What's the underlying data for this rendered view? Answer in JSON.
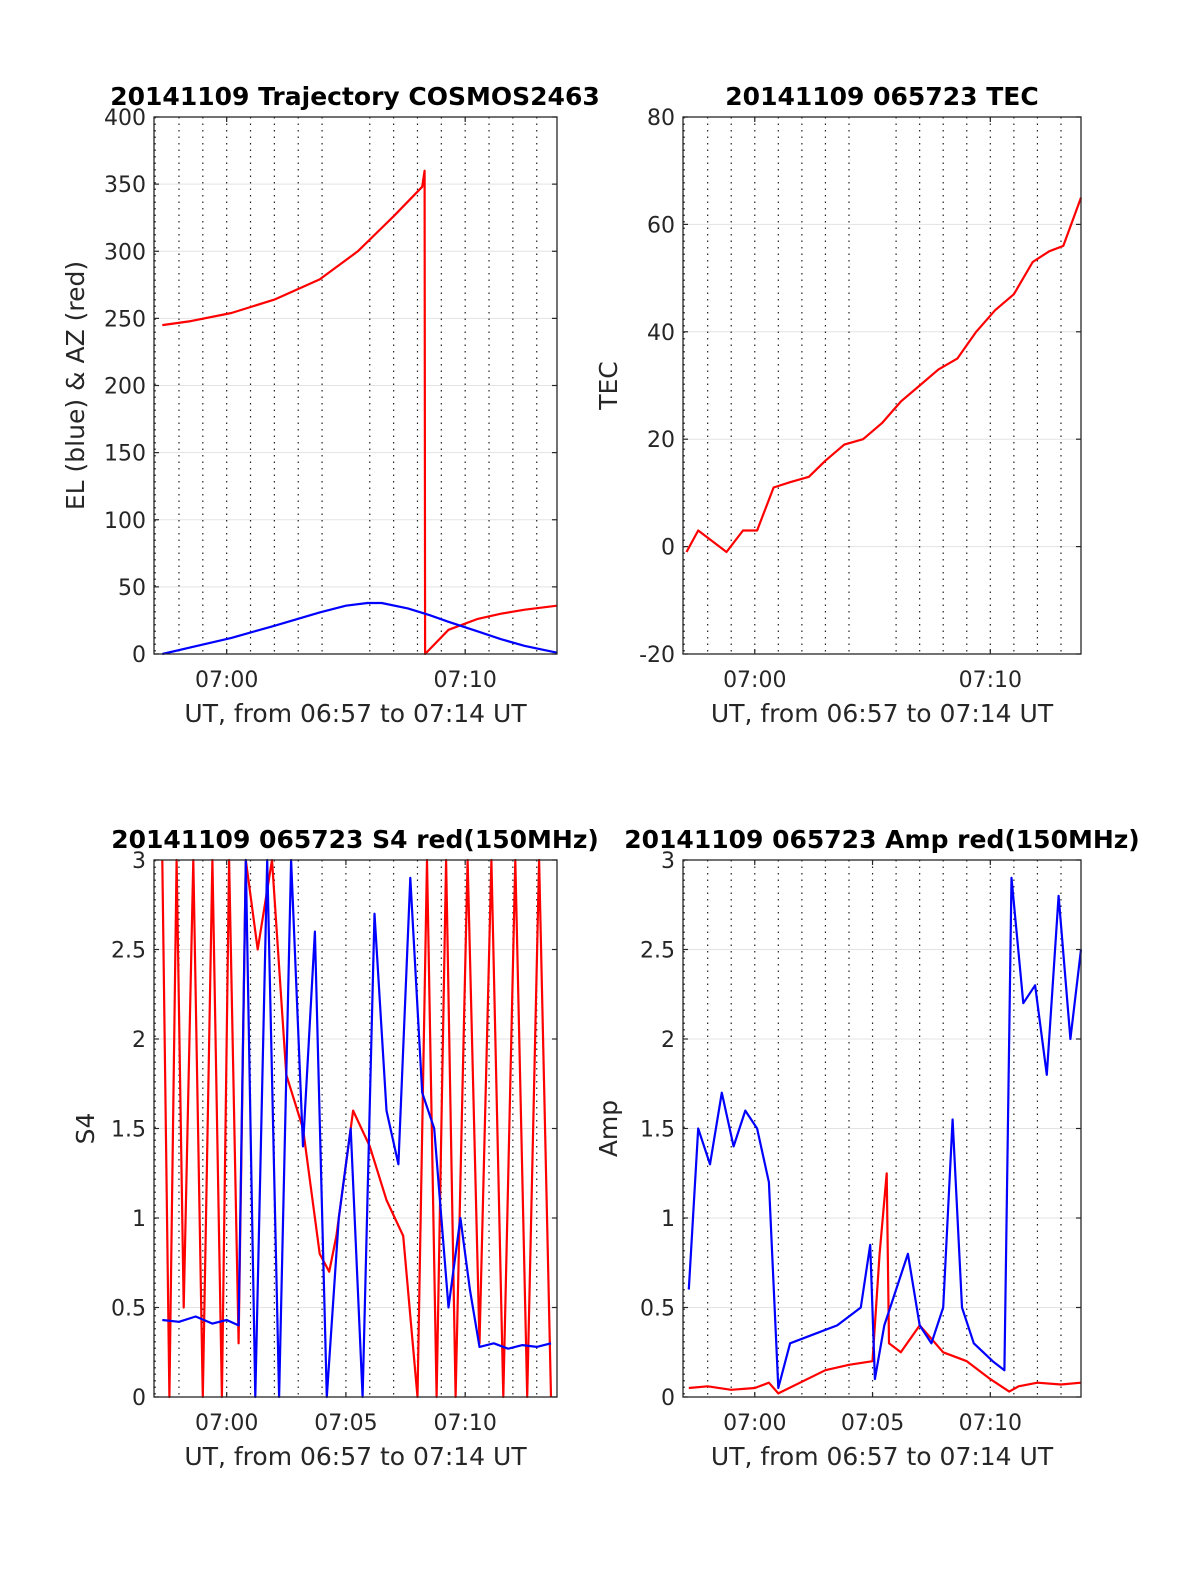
{
  "chart_data": [
    {
      "type": "line",
      "title": "20141109 Trajectory COSMOS2463",
      "xlabel": "UT, from 06:57 to 07:14 UT",
      "ylabel": "EL (blue) & AZ (red)",
      "xlim": [
        6.953,
        23.85
      ],
      "ylim": [
        0,
        400
      ],
      "x_ticks": [
        {
          "v": 10,
          "label": "07:00"
        },
        {
          "v": 20,
          "label": "07:10"
        }
      ],
      "y_ticks": [
        0,
        50,
        100,
        150,
        200,
        250,
        300,
        350,
        400
      ],
      "grid": true,
      "colors": {
        "az": "#ff0000",
        "el": "#0000ff"
      },
      "series": [
        {
          "name": "AZ (red)",
          "color": "#ff0000",
          "x": [
            7.3,
            8.5,
            10.2,
            12.0,
            13.9,
            15.5,
            17.0,
            18.2,
            18.3,
            18.32,
            19.3,
            20.5,
            21.5,
            22.5,
            23.85
          ],
          "y": [
            245,
            248,
            254,
            264,
            279,
            300,
            326,
            348,
            360,
            0,
            18,
            26,
            30,
            33,
            36
          ]
        },
        {
          "name": "EL (blue)",
          "color": "#0000ff",
          "x": [
            7.3,
            8.5,
            10.2,
            12.0,
            13.9,
            15.0,
            15.9,
            16.5,
            17.6,
            18.5,
            19.3,
            20.5,
            21.5,
            22.5,
            23.85
          ],
          "y": [
            0,
            5,
            12,
            21,
            31,
            36,
            38,
            38,
            34,
            29,
            24,
            17,
            11,
            6,
            1
          ]
        }
      ]
    },
    {
      "type": "line",
      "title": "20141109 065723 TEC",
      "xlabel": "UT, from 06:57 to 07:14 UT",
      "ylabel": "TEC",
      "xlim": [
        6.953,
        23.85
      ],
      "ylim": [
        -20,
        80
      ],
      "x_ticks": [
        {
          "v": 10,
          "label": "07:00"
        },
        {
          "v": 20,
          "label": "07:10"
        }
      ],
      "y_ticks": [
        -20,
        0,
        20,
        40,
        60,
        80
      ],
      "grid": true,
      "series": [
        {
          "color": "#ff0000",
          "x": [
            7.1,
            7.6,
            8.2,
            8.8,
            9.5,
            10.1,
            10.8,
            11.5,
            12.3,
            13.0,
            13.8,
            14.6,
            15.4,
            16.2,
            17.0,
            17.8,
            18.6,
            19.4,
            20.2,
            21.0,
            21.8,
            22.5,
            23.1,
            23.85
          ],
          "y": [
            -1,
            3,
            1,
            -1,
            3,
            3,
            11,
            12,
            13,
            16,
            19,
            20,
            23,
            27,
            30,
            33,
            35,
            40,
            44,
            47,
            53,
            55,
            56,
            65
          ]
        }
      ]
    },
    {
      "type": "line",
      "title": "20141109 065723 S4 red(150MHz)",
      "xlabel": "UT, from 06:57 to 07:14 UT",
      "ylabel": "S4",
      "xlim": [
        6.953,
        23.85
      ],
      "ylim": [
        0,
        3
      ],
      "x_ticks": [
        {
          "v": 10,
          "label": "07:00"
        },
        {
          "v": 15,
          "label": "07:05"
        },
        {
          "v": 20,
          "label": "07:10"
        }
      ],
      "y_ticks": [
        0,
        0.5,
        1,
        1.5,
        2,
        2.5,
        3
      ],
      "grid": true,
      "series": [
        {
          "name": "red",
          "color": "#ff0000",
          "x": [
            7.3,
            7.6,
            7.9,
            8.2,
            8.6,
            9.0,
            9.4,
            9.8,
            10.1,
            10.5,
            10.8,
            11.3,
            11.9,
            12.5,
            13.2,
            13.9,
            14.3,
            14.6,
            15.3,
            16.0,
            16.7,
            17.4,
            18.0,
            18.4,
            18.8,
            19.2,
            19.6,
            20.1,
            20.6,
            21.1,
            21.6,
            22.1,
            22.6,
            23.1,
            23.6
          ],
          "y": [
            3,
            0,
            3,
            0.5,
            3,
            0,
            3,
            0,
            3,
            0.3,
            3,
            2.5,
            3,
            1.8,
            1.5,
            0.8,
            0.7,
            0.9,
            1.6,
            1.4,
            1.1,
            0.9,
            0,
            3,
            0,
            3,
            0,
            3,
            0.3,
            3,
            0,
            3,
            0,
            3,
            0
          ]
        },
        {
          "name": "blue",
          "color": "#0000ff",
          "x": [
            7.3,
            8.0,
            8.7,
            9.4,
            10.0,
            10.5,
            10.8,
            11.2,
            11.7,
            12.2,
            12.7,
            13.2,
            13.7,
            14.2,
            14.7,
            15.2,
            15.7,
            16.2,
            16.7,
            17.2,
            17.7,
            18.2,
            18.7,
            19.3,
            19.8,
            20.2,
            20.6,
            21.2,
            21.8,
            22.4,
            23.0,
            23.6
          ],
          "y": [
            0.43,
            0.42,
            0.45,
            0.41,
            0.43,
            0.4,
            3,
            0,
            3,
            0,
            3,
            1.4,
            2.6,
            0,
            1.0,
            1.5,
            0,
            2.7,
            1.6,
            1.3,
            2.9,
            1.7,
            1.5,
            0.5,
            1.0,
            0.6,
            0.28,
            0.3,
            0.27,
            0.29,
            0.28,
            0.3
          ]
        }
      ]
    },
    {
      "type": "line",
      "title": "20141109 065723 Amp red(150MHz)",
      "xlabel": "UT, from 06:57 to 07:14 UT",
      "ylabel": "Amp",
      "xlim": [
        6.953,
        23.85
      ],
      "ylim": [
        0,
        3
      ],
      "x_ticks": [
        {
          "v": 10,
          "label": "07:00"
        },
        {
          "v": 15,
          "label": "07:05"
        },
        {
          "v": 20,
          "label": "07:10"
        }
      ],
      "y_ticks": [
        0,
        0.5,
        1,
        1.5,
        2,
        2.5,
        3
      ],
      "grid": true,
      "series": [
        {
          "name": "red",
          "color": "#ff0000",
          "x": [
            7.2,
            8.0,
            9.0,
            10.0,
            10.6,
            11.0,
            13.0,
            14.0,
            15.0,
            15.3,
            15.6,
            15.7,
            16.2,
            17.0,
            18.0,
            19.0,
            20.0,
            20.8,
            21.2,
            22.0,
            23.0,
            23.85
          ],
          "y": [
            0.05,
            0.06,
            0.04,
            0.05,
            0.08,
            0.02,
            0.15,
            0.18,
            0.2,
            0.8,
            1.25,
            0.3,
            0.25,
            0.4,
            0.25,
            0.2,
            0.1,
            0.03,
            0.06,
            0.08,
            0.07,
            0.08
          ]
        },
        {
          "name": "blue",
          "color": "#0000ff",
          "x": [
            7.2,
            7.6,
            8.1,
            8.6,
            9.1,
            9.6,
            10.1,
            10.6,
            11.0,
            11.5,
            12.5,
            13.5,
            14.5,
            14.9,
            15.1,
            15.5,
            16.0,
            16.5,
            17.0,
            17.5,
            18.0,
            18.4,
            18.8,
            19.3,
            20.1,
            20.6,
            20.9,
            21.4,
            21.9,
            22.4,
            22.9,
            23.4,
            23.85
          ],
          "y": [
            0.6,
            1.5,
            1.3,
            1.7,
            1.4,
            1.6,
            1.5,
            1.2,
            0.05,
            0.3,
            0.35,
            0.4,
            0.5,
            0.85,
            0.1,
            0.4,
            0.6,
            0.8,
            0.4,
            0.3,
            0.5,
            1.55,
            0.5,
            0.3,
            0.2,
            0.15,
            2.9,
            2.2,
            2.3,
            1.8,
            2.8,
            2.0,
            2.5
          ]
        }
      ]
    }
  ]
}
